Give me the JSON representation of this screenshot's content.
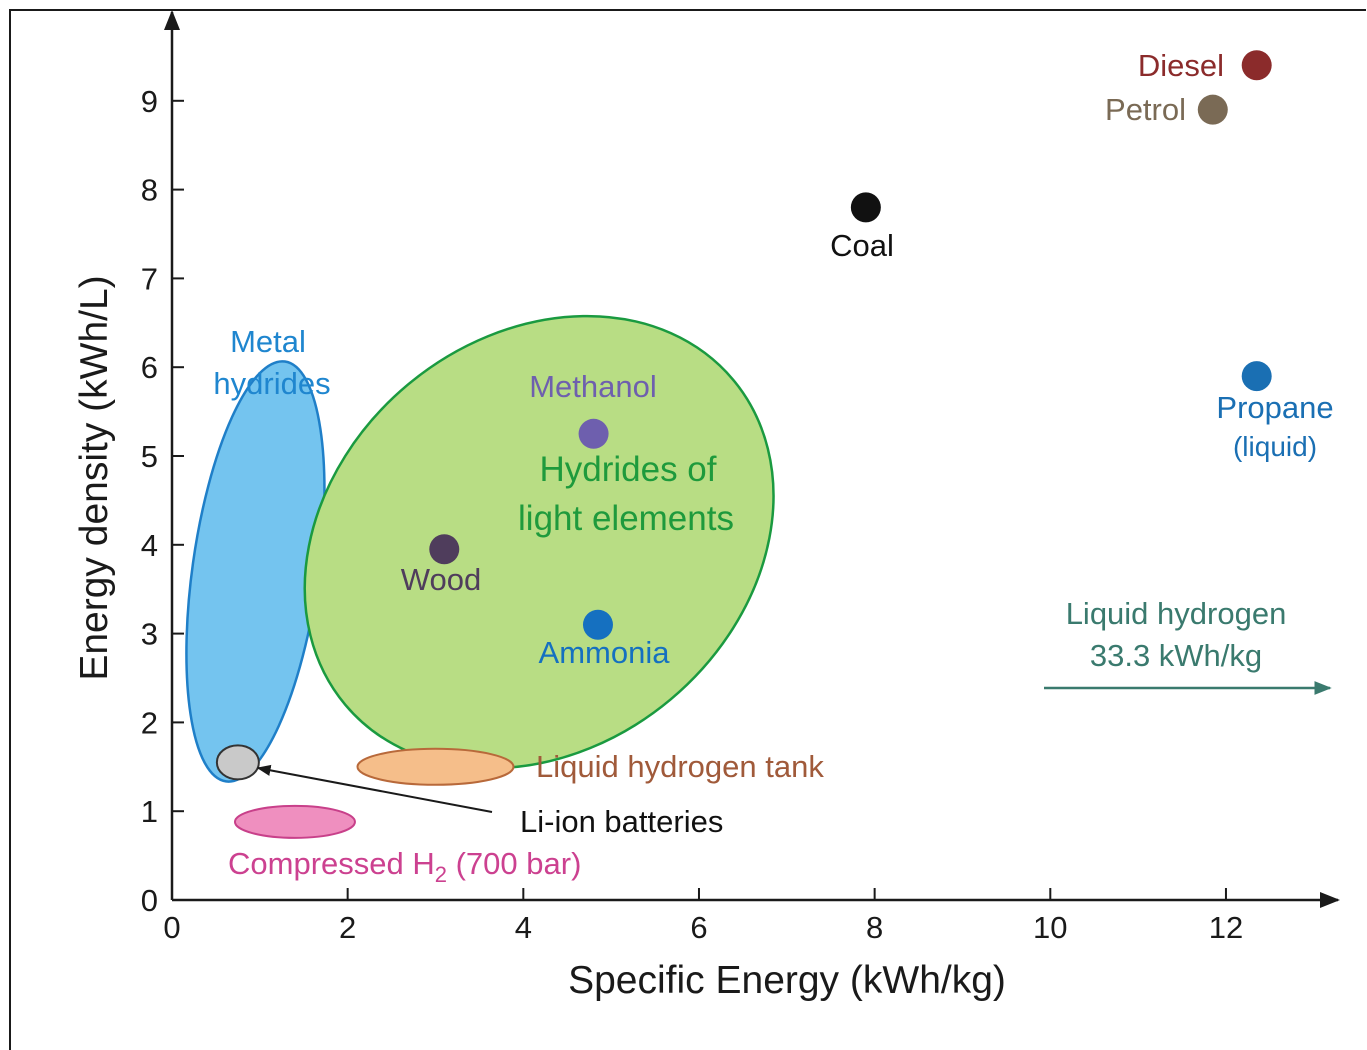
{
  "chart_data": {
    "type": "scatter",
    "xlabel": "Specific Energy (kWh/kg)",
    "ylabel": "Energy density (kWh/L)",
    "xlim": [
      0,
      13.2
    ],
    "ylim": [
      0,
      10.2
    ],
    "xticks": [
      0,
      2,
      4,
      6,
      8,
      10,
      12
    ],
    "yticks": [
      0,
      1,
      2,
      3,
      4,
      5,
      6,
      7,
      8,
      9
    ],
    "points": [
      {
        "name": "Diesel",
        "x": 12.35,
        "y": 9.4,
        "color": "#8b2b2b"
      },
      {
        "name": "Petrol",
        "x": 11.85,
        "y": 8.9,
        "color": "#7a6a55"
      },
      {
        "name": "Coal",
        "x": 7.9,
        "y": 7.8,
        "color": "#111111"
      },
      {
        "name": "Propane (liquid)",
        "lines": [
          "Propane",
          "(liquid)"
        ],
        "x": 12.35,
        "y": 5.9,
        "color": "#1a6fb3"
      },
      {
        "name": "Methanol",
        "x": 4.8,
        "y": 5.25,
        "color": "#6e5fae"
      },
      {
        "name": "Wood",
        "x": 3.1,
        "y": 3.95,
        "color": "#4f3d5c"
      },
      {
        "name": "Ammonia",
        "x": 4.85,
        "y": 3.1,
        "color": "#1570c0"
      }
    ],
    "regions": [
      {
        "name": "Metal hydrides",
        "lines": [
          "Metal",
          "hydrides"
        ],
        "cx": 0.95,
        "cy": 3.7,
        "color": "#74c4ef",
        "stroke": "#1f7fc8",
        "label_color": "#1f86cf"
      },
      {
        "name": "Hydrides of light elements",
        "lines": [
          "Hydrides of",
          "light elements"
        ],
        "cx": 4.18,
        "cy": 4.03,
        "color": "#b8dd84",
        "stroke": "#1a9a40",
        "label_color": "#1e9a3c"
      },
      {
        "name": "Liquid hydrogen tank",
        "cx": 3.0,
        "cy": 1.5,
        "color": "#f5be8a",
        "stroke": "#b8693a",
        "label_color": "#a05a3a"
      },
      {
        "name": "Li-ion batteries",
        "cx": 0.75,
        "cy": 1.55,
        "color": "#c9c9c9",
        "stroke": "#333333",
        "label_color": "#111111"
      },
      {
        "name": "Compressed H2 (700 bar)",
        "label_main": "Compressed H",
        "label_sub": "2",
        "label_tail": " (700 bar)",
        "cx": 1.4,
        "cy": 0.88,
        "color": "#ef8fbf",
        "stroke": "#c8408a",
        "label_color": "#cc4190"
      }
    ],
    "annotation": {
      "lines": [
        "Liquid hydrogen",
        "33.3 kWh/kg"
      ],
      "color": "#3a7a6e"
    }
  }
}
